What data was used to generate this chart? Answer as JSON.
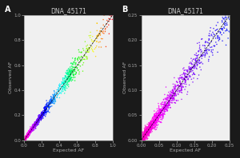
{
  "title": "DNA_45171",
  "xlabel": "Expected AF",
  "ylabel": "Observed AF",
  "panel_A_label": "A",
  "panel_B_label": "B",
  "xlim_A": [
    0.0,
    1.0
  ],
  "ylim_A": [
    0.0,
    1.0
  ],
  "xlim_B": [
    0.0,
    0.25
  ],
  "ylim_B": [
    0.0,
    0.25
  ],
  "xticks_A": [
    0.0,
    0.2,
    0.4,
    0.6,
    0.8,
    1.0
  ],
  "yticks_A": [
    0.0,
    0.2,
    0.4,
    0.6,
    0.8,
    1.0
  ],
  "xticks_B": [
    0.0,
    0.05,
    0.1,
    0.15,
    0.2,
    0.25
  ],
  "yticks_B": [
    0.0,
    0.05,
    0.1,
    0.15,
    0.2,
    0.25
  ],
  "n_points": 2000,
  "seed": 42,
  "point_size": 1.2,
  "alpha": 0.85,
  "plot_bg": "#f0f0f0",
  "fig_background": "#1a1a1a",
  "title_fontsize": 5.5,
  "label_fontsize": 4.5,
  "tick_fontsize": 4.0,
  "panel_label_fontsize": 7,
  "spine_color": "#555555",
  "tick_color": "#333333"
}
